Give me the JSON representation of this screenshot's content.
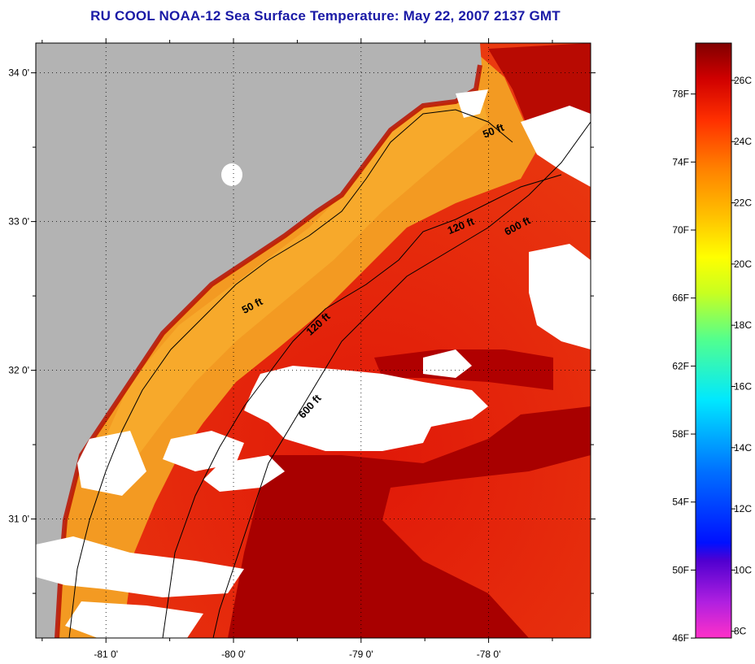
{
  "title": "RU COOL  NOAA-12  Sea Surface Temperature:  May 22, 2007 2137 GMT",
  "map": {
    "latitude_labels": [
      "34 0'",
      "33 0'",
      "32 0'",
      "31 0'"
    ],
    "longitude_labels": [
      "-81 0'",
      "-80 0'",
      "-79 0'",
      "-78 0'"
    ],
    "lat_values": [
      34,
      33,
      32,
      31
    ],
    "lon_values": [
      -81,
      -80,
      -79,
      -78
    ],
    "extent": {
      "lon_min": -81.55,
      "lon_max": -77.2,
      "lat_min": 30.2,
      "lat_max": 34.2
    },
    "contours": [
      {
        "label": "50 ft",
        "id": "50-inner"
      },
      {
        "label": "50 ft",
        "id": "50-outer"
      },
      {
        "label": "120 ft",
        "id": "120-south"
      },
      {
        "label": "120 ft",
        "id": "120-north"
      },
      {
        "label": "600 ft",
        "id": "600-south"
      },
      {
        "label": "600 ft",
        "id": "600-north"
      }
    ],
    "colors": {
      "land": "#b3b3b3",
      "cloud": "#ffffff",
      "warm_water": "#e8200a",
      "hot_water": "#a80000",
      "shelf_water": "#f39a22"
    }
  },
  "colorbar": {
    "fahrenheit_labels": [
      "78F",
      "74F",
      "70F",
      "66F",
      "62F",
      "58F",
      "54F",
      "50F",
      "46F"
    ],
    "celsius_labels": [
      "26C",
      "24C",
      "22C",
      "20C",
      "18C",
      "16C",
      "14C",
      "12C",
      "10C",
      "8C"
    ],
    "fahrenheit_values": [
      78,
      74,
      70,
      66,
      62,
      58,
      54,
      50,
      46
    ],
    "celsius_values": [
      26,
      24,
      22,
      20,
      18,
      16,
      14,
      12,
      10,
      8
    ],
    "range_c": [
      7.78,
      27.22
    ]
  }
}
